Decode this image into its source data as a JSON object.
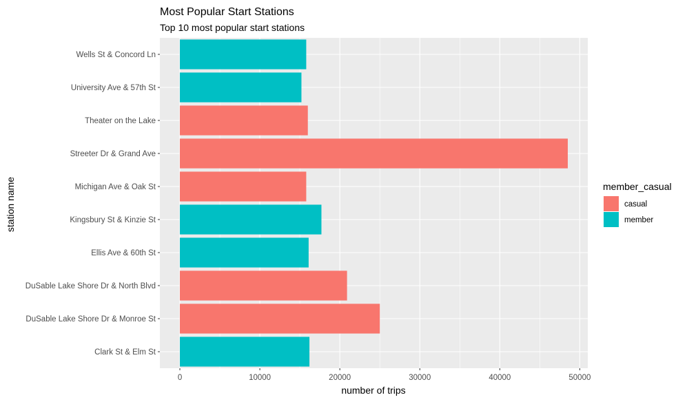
{
  "chart_data": {
    "type": "bar",
    "orientation": "horizontal",
    "title": "Most Popular Start Stations",
    "subtitle": "Top 10 most popular start stations",
    "xlabel": "number of trips",
    "ylabel": "station name",
    "xlim": [
      -2500,
      51000
    ],
    "xticks": [
      0,
      10000,
      20000,
      30000,
      40000,
      50000
    ],
    "grid": true,
    "legend": {
      "title": "member_casual",
      "placement": "right",
      "entries": [
        {
          "name": "casual",
          "color": "#F8766D"
        },
        {
          "name": "member",
          "color": "#00BFC4"
        }
      ]
    },
    "categories": [
      "Clark St & Elm St",
      "DuSable Lake Shore Dr & Monroe St",
      "DuSable Lake Shore Dr & North Blvd",
      "Ellis Ave & 60th St",
      "Kingsbury St & Kinzie St",
      "Michigan Ave & Oak St",
      "Streeter Dr & Grand Ave",
      "Theater on the Lake",
      "University Ave & 57th St",
      "Wells St & Concord Ln"
    ],
    "values": [
      16200,
      25000,
      20900,
      16100,
      17700,
      15800,
      48500,
      16000,
      15200,
      15800
    ],
    "groups": [
      "member",
      "casual",
      "casual",
      "member",
      "member",
      "casual",
      "casual",
      "casual",
      "member",
      "member"
    ]
  }
}
